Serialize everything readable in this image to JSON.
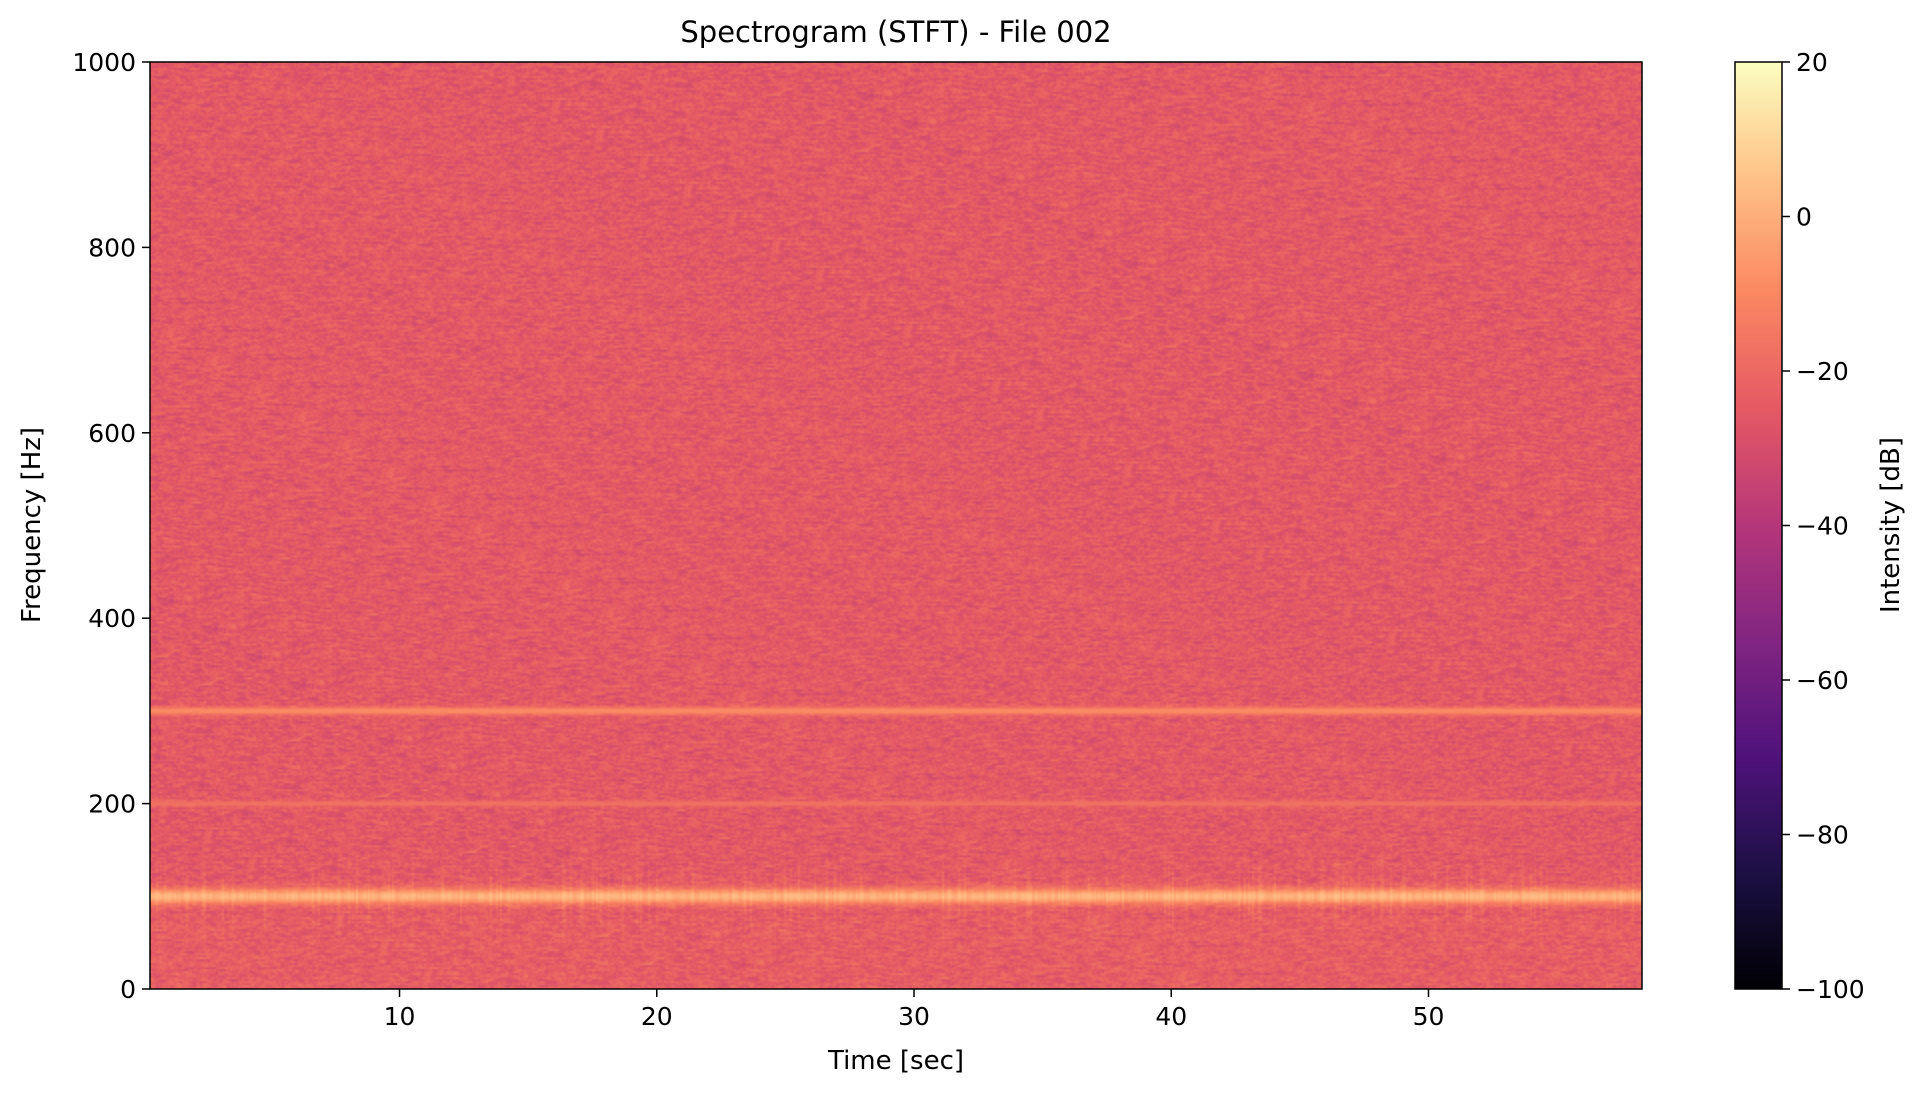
{
  "chart_data": {
    "type": "heatmap",
    "title": "Spectrogram (STFT) - File 002",
    "xlabel": "Time [sec]",
    "ylabel": "Frequency [Hz]",
    "xlim": [
      0.3,
      58.3
    ],
    "ylim": [
      0,
      1000
    ],
    "xticks": [
      10,
      20,
      30,
      40,
      50
    ],
    "yticks": [
      0,
      200,
      400,
      600,
      800,
      1000
    ],
    "colormap": "magma",
    "colorbar": {
      "label": "Intensity [dB]",
      "range": [
        -100,
        20
      ],
      "ticks": [
        20,
        0,
        -20,
        -40,
        -60,
        -80,
        -100
      ]
    },
    "background_level_db": -25,
    "noise_spread_db": 6,
    "tones": [
      {
        "frequency": 100,
        "level_db": 2,
        "bandwidth": 6
      },
      {
        "frequency": 200,
        "level_db": -16,
        "bandwidth": 2
      },
      {
        "frequency": 300,
        "level_db": -8,
        "bandwidth": 3
      }
    ],
    "grid": false
  }
}
